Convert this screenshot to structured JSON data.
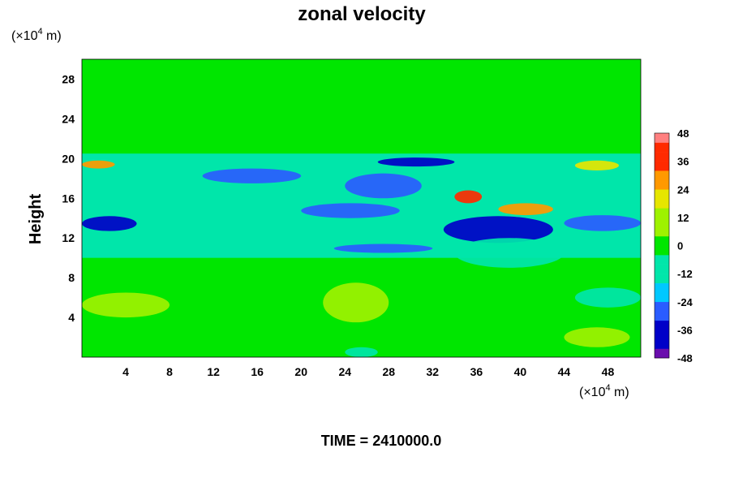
{
  "chart_data": {
    "type": "heatmap",
    "title": "zonal velocity",
    "ylabel": "Height",
    "y_unit_prefix": "(×10",
    "x_unit_prefix": "(×10",
    "unit_exponent": "4",
    "unit_suffix": " m)",
    "xlim": [
      0,
      51
    ],
    "ylim": [
      0,
      30
    ],
    "x_ticks": [
      4,
      8,
      12,
      16,
      20,
      24,
      28,
      32,
      36,
      40,
      44,
      48
    ],
    "y_ticks": [
      4,
      8,
      12,
      16,
      20,
      24,
      28
    ],
    "colorbar": {
      "min": -48,
      "max": 48,
      "step": 4,
      "ticks": [
        48,
        36,
        24,
        12,
        0,
        -12,
        -24,
        -36,
        -48
      ]
    },
    "colormap": [
      "#6a0dad",
      "#0000c8",
      "#2a5cff",
      "#00c8ff",
      "#00e6aa",
      "#00e600",
      "#9ef200",
      "#e6e600",
      "#ff9900",
      "#ff2a00",
      "#ff8080"
    ],
    "field_features": [
      {
        "x": [
          0,
          51
        ],
        "y": [
          20.5,
          30
        ],
        "value": 0
      },
      {
        "x": [
          0,
          51
        ],
        "y": [
          0,
          10
        ],
        "value": 4
      },
      {
        "x": [
          0,
          51
        ],
        "y": [
          10,
          20.5
        ],
        "value": -10
      },
      {
        "x": [
          0,
          5
        ],
        "y": [
          12.7,
          14.2
        ],
        "value": -36
      },
      {
        "x": [
          44,
          51
        ],
        "y": [
          12.7,
          14.3
        ],
        "value": -32
      },
      {
        "x": [
          33,
          43
        ],
        "y": [
          11.5,
          14.2
        ],
        "value": -40
      },
      {
        "x": [
          27,
          34
        ],
        "y": [
          19.2,
          20.1
        ],
        "value": -40
      },
      {
        "x": [
          11,
          20
        ],
        "y": [
          17.5,
          19
        ],
        "value": -30
      },
      {
        "x": [
          24,
          31
        ],
        "y": [
          16,
          18.5
        ],
        "value": -30
      },
      {
        "x": [
          20,
          29
        ],
        "y": [
          14,
          15.5
        ],
        "value": -28
      },
      {
        "x": [
          23,
          32
        ],
        "y": [
          10.5,
          11.4
        ],
        "value": -28
      },
      {
        "x": [
          34,
          36.5
        ],
        "y": [
          15.5,
          16.8
        ],
        "value": 36
      },
      {
        "x": [
          38,
          43
        ],
        "y": [
          14.3,
          15.5
        ],
        "value": 24
      },
      {
        "x": [
          0,
          3
        ],
        "y": [
          19,
          19.8
        ],
        "value": 30
      },
      {
        "x": [
          45,
          49
        ],
        "y": [
          18.8,
          19.8
        ],
        "value": 22
      },
      {
        "x": [
          22,
          28
        ],
        "y": [
          3.5,
          7.5
        ],
        "value": 12
      },
      {
        "x": [
          0,
          8
        ],
        "y": [
          4,
          6.5
        ],
        "value": 10
      },
      {
        "x": [
          44,
          50
        ],
        "y": [
          1,
          3
        ],
        "value": 10
      },
      {
        "x": [
          45,
          51
        ],
        "y": [
          5,
          7
        ],
        "value": -8
      },
      {
        "x": [
          24,
          27
        ],
        "y": [
          0,
          1
        ],
        "value": -10
      },
      {
        "x": [
          34,
          44
        ],
        "y": [
          9,
          12
        ],
        "value": -12
      }
    ],
    "footer": "TIME = 2410000.0"
  }
}
